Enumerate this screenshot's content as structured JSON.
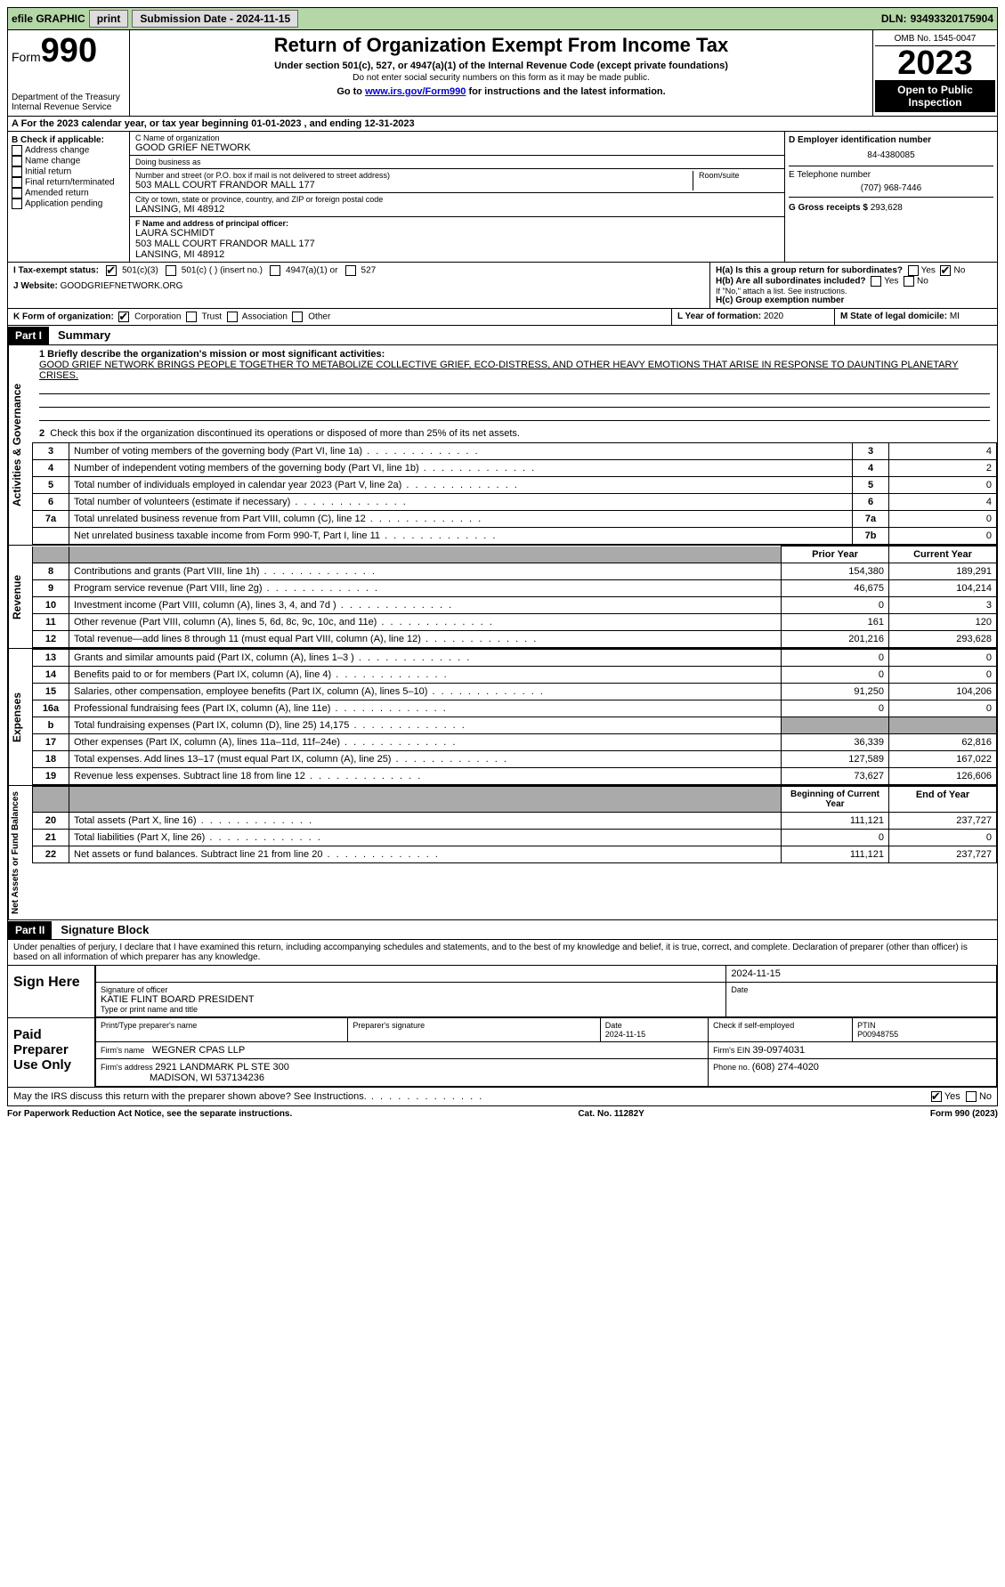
{
  "topbar": {
    "efile": "efile GRAPHIC",
    "print": "print",
    "subdate_label": "Submission Date - ",
    "subdate": "2024-11-15",
    "dln_label": "DLN: ",
    "dln": "93493320175904"
  },
  "header": {
    "form_label": "Form",
    "form_num": "990",
    "dept": "Department of the Treasury\nInternal Revenue Service",
    "title": "Return of Organization Exempt From Income Tax",
    "sub1": "Under section 501(c), 527, or 4947(a)(1) of the Internal Revenue Code (except private foundations)",
    "sub2": "Do not enter social security numbers on this form as it may be made public.",
    "sub3_pre": "Go to ",
    "sub3_link": "www.irs.gov/Form990",
    "sub3_post": " for instructions and the latest information.",
    "omb": "OMB No. 1545-0047",
    "year": "2023",
    "inspect": "Open to Public Inspection"
  },
  "rowA": {
    "text_pre": "A For the 2023 calendar year, or tax year beginning ",
    "begin": "01-01-2023",
    "text_mid": "   , and ending ",
    "end": "12-31-2023"
  },
  "colB": {
    "label": "B Check if applicable:",
    "items": [
      "Address change",
      "Name change",
      "Initial return",
      "Final return/terminated",
      "Amended return",
      "Application pending"
    ]
  },
  "colC": {
    "name_lab": "C Name of organization",
    "name": "GOOD GRIEF NETWORK",
    "dba_lab": "Doing business as",
    "dba": "",
    "street_lab": "Number and street (or P.O. box if mail is not delivered to street address)",
    "street": "503 MALL COURT FRANDOR MALL 177",
    "suite_lab": "Room/suite",
    "city_lab": "City or town, state or province, country, and ZIP or foreign postal code",
    "city": "LANSING, MI  48912",
    "officer_lab": "F Name and address of principal officer:",
    "officer_name": "LAURA SCHMIDT",
    "officer_addr1": "503 MALL COURT FRANDOR MALL 177",
    "officer_addr2": "LANSING, MI  48912"
  },
  "colDE": {
    "ein_lab": "D Employer identification number",
    "ein": "84-4380085",
    "tel_lab": "E Telephone number",
    "tel": "(707) 968-7446",
    "gross_lab": "G Gross receipts $ ",
    "gross": "293,628",
    "ha_lab": "H(a)  Is this a group return for subordinates?",
    "hb_lab": "H(b)  Are all subordinates included?",
    "hb_note": "If \"No,\" attach a list. See instructions.",
    "hc_lab": "H(c)  Group exemption number ",
    "yes": "Yes",
    "no": "No"
  },
  "rowI": {
    "label": "I     Tax-exempt status:",
    "opt1": "501(c)(3)",
    "opt2": "501(c) (  ) (insert no.)",
    "opt3": "4947(a)(1) or",
    "opt4": "527"
  },
  "rowJ": {
    "label": "J     Website: ",
    "val": "GOODGRIEFNETWORK.ORG"
  },
  "rowK": {
    "label": "K Form of organization:",
    "opts": [
      "Corporation",
      "Trust",
      "Association",
      "Other"
    ],
    "l_lab": "L Year of formation: ",
    "l_val": "2020",
    "m_lab": "M State of legal domicile: ",
    "m_val": "MI"
  },
  "part1": {
    "hdr": "Part I",
    "title": "Summary",
    "line1_lab": "1  Briefly describe the organization's mission or most significant activities:",
    "mission": "GOOD GRIEF NETWORK BRINGS PEOPLE TOGETHER TO METABOLIZE COLLECTIVE GRIEF, ECO-DISTRESS, AND OTHER HEAVY EMOTIONS THAT ARISE IN RESPONSE TO DAUNTING PLANETARY CRISES.",
    "line2": "Check this box        if the organization discontinued its operations or disposed of more than 25% of its net assets.",
    "rows_ag": [
      {
        "n": "3",
        "t": "Number of voting members of the governing body (Part VI, line 1a)",
        "b": "3",
        "v": "4"
      },
      {
        "n": "4",
        "t": "Number of independent voting members of the governing body (Part VI, line 1b)",
        "b": "4",
        "v": "2"
      },
      {
        "n": "5",
        "t": "Total number of individuals employed in calendar year 2023 (Part V, line 2a)",
        "b": "5",
        "v": "0"
      },
      {
        "n": "6",
        "t": "Total number of volunteers (estimate if necessary)",
        "b": "6",
        "v": "4"
      },
      {
        "n": "7a",
        "t": "Total unrelated business revenue from Part VIII, column (C), line 12",
        "b": "7a",
        "v": "0"
      },
      {
        "n": "",
        "t": "Net unrelated business taxable income from Form 990-T, Part I, line 11",
        "b": "7b",
        "v": "0"
      }
    ],
    "prior": "Prior Year",
    "current": "Current Year",
    "rows_rev": [
      {
        "n": "8",
        "t": "Contributions and grants (Part VIII, line 1h)",
        "p": "154,380",
        "c": "189,291"
      },
      {
        "n": "9",
        "t": "Program service revenue (Part VIII, line 2g)",
        "p": "46,675",
        "c": "104,214"
      },
      {
        "n": "10",
        "t": "Investment income (Part VIII, column (A), lines 3, 4, and 7d )",
        "p": "0",
        "c": "3"
      },
      {
        "n": "11",
        "t": "Other revenue (Part VIII, column (A), lines 5, 6d, 8c, 9c, 10c, and 11e)",
        "p": "161",
        "c": "120"
      },
      {
        "n": "12",
        "t": "Total revenue—add lines 8 through 11 (must equal Part VIII, column (A), line 12)",
        "p": "201,216",
        "c": "293,628"
      }
    ],
    "rows_exp": [
      {
        "n": "13",
        "t": "Grants and similar amounts paid (Part IX, column (A), lines 1–3 )",
        "p": "0",
        "c": "0"
      },
      {
        "n": "14",
        "t": "Benefits paid to or for members (Part IX, column (A), line 4)",
        "p": "0",
        "c": "0"
      },
      {
        "n": "15",
        "t": "Salaries, other compensation, employee benefits (Part IX, column (A), lines 5–10)",
        "p": "91,250",
        "c": "104,206"
      },
      {
        "n": "16a",
        "t": "Professional fundraising fees (Part IX, column (A), line 11e)",
        "p": "0",
        "c": "0"
      },
      {
        "n": "b",
        "t": "Total fundraising expenses (Part IX, column (D), line 25) 14,175",
        "p": "",
        "c": "",
        "shade": true
      },
      {
        "n": "17",
        "t": "Other expenses (Part IX, column (A), lines 11a–11d, 11f–24e)",
        "p": "36,339",
        "c": "62,816"
      },
      {
        "n": "18",
        "t": "Total expenses. Add lines 13–17 (must equal Part IX, column (A), line 25)",
        "p": "127,589",
        "c": "167,022"
      },
      {
        "n": "19",
        "t": "Revenue less expenses. Subtract line 18 from line 12",
        "p": "73,627",
        "c": "126,606"
      }
    ],
    "begin": "Beginning of Current Year",
    "end": "End of Year",
    "rows_na": [
      {
        "n": "20",
        "t": "Total assets (Part X, line 16)",
        "p": "111,121",
        "c": "237,727"
      },
      {
        "n": "21",
        "t": "Total liabilities (Part X, line 26)",
        "p": "0",
        "c": "0"
      },
      {
        "n": "22",
        "t": "Net assets or fund balances. Subtract line 21 from line 20",
        "p": "111,121",
        "c": "237,727"
      }
    ],
    "vtabs": [
      "Activities & Governance",
      "Revenue",
      "Expenses",
      "Net Assets or Fund Balances"
    ]
  },
  "part2": {
    "hdr": "Part II",
    "title": "Signature Block",
    "decl": "Under penalties of perjury, I declare that I have examined this return, including accompanying schedules and statements, and to the best of my knowledge and belief, it is true, correct, and complete. Declaration of preparer (other than officer) is based on all information of which preparer has any knowledge.",
    "sign_here": "Sign Here",
    "sig_officer_lab": "Signature of officer",
    "sig_officer": "KATIE FLINT BOARD PRESIDENT",
    "sig_type_lab": "Type or print name and title",
    "sig_date": "2024-11-15",
    "date_lab": "Date",
    "paid": "Paid Preparer Use Only",
    "prep_name_lab": "Print/Type preparer's name",
    "prep_sig_lab": "Preparer's signature",
    "prep_date": "2024-11-15",
    "self_emp": "Check        if self-employed",
    "ptin_lab": "PTIN",
    "ptin": "P00948755",
    "firm_name_lab": "Firm's name   ",
    "firm_name": "WEGNER CPAS LLP",
    "firm_ein_lab": "Firm's EIN  ",
    "firm_ein": "39-0974031",
    "firm_addr_lab": "Firm's address ",
    "firm_addr1": "2921 LANDMARK PL STE 300",
    "firm_addr2": "MADISON, WI  537134236",
    "firm_phone_lab": "Phone no. ",
    "firm_phone": "(608) 274-4020",
    "discuss": "May the IRS discuss this return with the preparer shown above? See Instructions.",
    "yes": "Yes",
    "no": "No"
  },
  "footer": {
    "left": "For Paperwork Reduction Act Notice, see the separate instructions.",
    "mid": "Cat. No. 11282Y",
    "right": "Form 990 (2023)"
  }
}
